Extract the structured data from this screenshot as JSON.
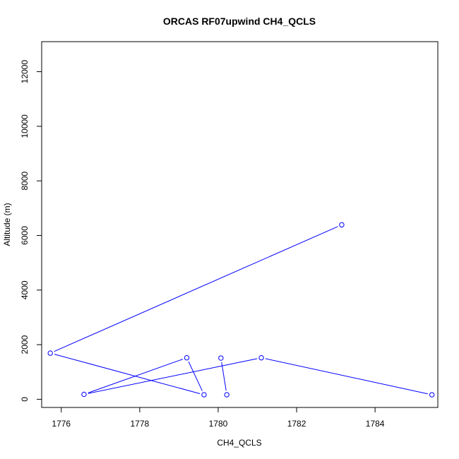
{
  "chart_data": {
    "type": "line",
    "title": "ORCAS RF07upwind CH4_QCLS",
    "xlabel": "CH4_QCLS",
    "ylabel": "Altitude (m)",
    "xlim": [
      1775.5,
      1785.6
    ],
    "ylim": [
      -300,
      13100
    ],
    "x_ticks": [
      1776,
      1778,
      1780,
      1782,
      1784
    ],
    "y_ticks": [
      0,
      2000,
      4000,
      6000,
      8000,
      10000,
      12000
    ],
    "series": [
      {
        "color": "#0000ff",
        "marker": "open-circle",
        "points": [
          {
            "x": 1783.15,
            "y": 6390
          },
          {
            "x": 1775.72,
            "y": 1690
          },
          {
            "x": 1779.64,
            "y": 165
          },
          {
            "x": 1779.2,
            "y": 1520
          },
          {
            "x": 1776.58,
            "y": 180
          },
          {
            "x": 1781.1,
            "y": 1520
          },
          {
            "x": 1785.45,
            "y": 165
          }
        ]
      },
      {
        "color": "#0000ff",
        "marker": "open-circle",
        "points": [
          {
            "x": 1780.22,
            "y": 165
          },
          {
            "x": 1780.07,
            "y": 1510
          }
        ]
      }
    ]
  }
}
